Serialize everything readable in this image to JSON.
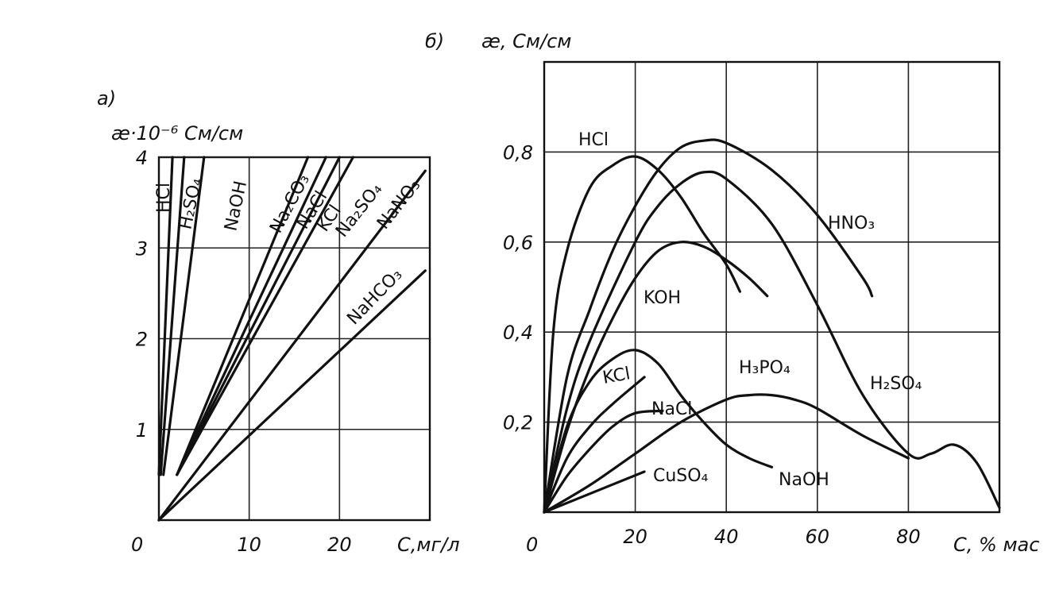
{
  "chart_data": [
    {
      "type": "line",
      "panel_label": "а)",
      "ylabel": "æ·10⁻⁶ См/см",
      "xlabel": "С,мг/л",
      "origin_label": "0",
      "xlim": [
        0,
        30
      ],
      "ylim": [
        0,
        4
      ],
      "x_ticks": [
        10,
        20
      ],
      "y_ticks": [
        1,
        2,
        3,
        4
      ],
      "grid": true,
      "series": [
        {
          "name": "HCl",
          "x": [
            0,
            1.5
          ],
          "y": [
            0.5,
            4.0
          ]
        },
        {
          "name": "H₂SO₄",
          "x": [
            0.2,
            2.8
          ],
          "y": [
            0.5,
            4.0
          ]
        },
        {
          "name": "NaOH",
          "x": [
            0.5,
            5.0
          ],
          "y": [
            0.5,
            4.0
          ]
        },
        {
          "name": "Na₂CO₃",
          "x": [
            2.0,
            16.5
          ],
          "y": [
            0.5,
            4.0
          ]
        },
        {
          "name": "NaCl",
          "x": [
            2.0,
            18.5
          ],
          "y": [
            0.5,
            4.0
          ]
        },
        {
          "name": "KCl",
          "x": [
            2.0,
            20.0
          ],
          "y": [
            0.5,
            4.0
          ]
        },
        {
          "name": "Na₂SO₄",
          "x": [
            2.0,
            21.5
          ],
          "y": [
            0.5,
            4.0
          ]
        },
        {
          "name": "NaNO₃",
          "x": [
            0,
            29.5
          ],
          "y": [
            0,
            3.85
          ]
        },
        {
          "name": "NaHCO₃",
          "x": [
            0,
            29.5
          ],
          "y": [
            0,
            2.75
          ]
        }
      ]
    },
    {
      "type": "line",
      "panel_label": "б)",
      "ylabel": "æ, См/см",
      "xlabel": "С, % мас",
      "origin_label": "0",
      "xlim": [
        0,
        100
      ],
      "ylim": [
        0,
        1.0
      ],
      "x_ticks": [
        20,
        40,
        60,
        80
      ],
      "y_ticks": [
        0.2,
        0.4,
        0.6,
        0.8
      ],
      "y_tick_labels": [
        "0,2",
        "0,4",
        "0,6",
        "0,8"
      ],
      "grid": true,
      "series": [
        {
          "name": "HCl",
          "x": [
            0,
            2,
            5,
            10,
            15,
            20,
            25,
            30,
            35,
            40,
            43
          ],
          "y": [
            0,
            0.4,
            0.58,
            0.72,
            0.77,
            0.79,
            0.76,
            0.7,
            0.62,
            0.55,
            0.49
          ]
        },
        {
          "name": "HNO₃",
          "x": [
            0,
            5,
            10,
            15,
            20,
            25,
            30,
            35,
            40,
            50,
            60,
            70,
            72
          ],
          "y": [
            0,
            0.3,
            0.45,
            0.58,
            0.68,
            0.76,
            0.81,
            0.825,
            0.82,
            0.76,
            0.66,
            0.52,
            0.48
          ]
        },
        {
          "name": "H₂SO₄",
          "x": [
            0,
            5,
            10,
            20,
            25,
            30,
            35,
            40,
            50,
            60,
            70,
            80,
            85,
            90,
            95,
            100
          ],
          "y": [
            0,
            0.23,
            0.38,
            0.6,
            0.68,
            0.73,
            0.755,
            0.74,
            0.64,
            0.46,
            0.26,
            0.13,
            0.13,
            0.15,
            0.11,
            0.01
          ]
        },
        {
          "name": "KOH",
          "x": [
            0,
            5,
            10,
            15,
            20,
            25,
            30,
            35,
            40,
            45,
            49
          ],
          "y": [
            0,
            0.18,
            0.32,
            0.43,
            0.52,
            0.58,
            0.6,
            0.59,
            0.56,
            0.52,
            0.48
          ]
        },
        {
          "name": "NaOH",
          "x": [
            0,
            5,
            10,
            15,
            20,
            25,
            30,
            35,
            40,
            45,
            50
          ],
          "y": [
            0,
            0.19,
            0.29,
            0.34,
            0.36,
            0.33,
            0.26,
            0.2,
            0.15,
            0.12,
            0.1
          ]
        },
        {
          "name": "KCl",
          "x": [
            0,
            5,
            10,
            15,
            22
          ],
          "y": [
            0,
            0.12,
            0.19,
            0.24,
            0.3
          ]
        },
        {
          "name": "NaCl",
          "x": [
            0,
            5,
            10,
            15,
            20,
            26
          ],
          "y": [
            0,
            0.08,
            0.14,
            0.19,
            0.22,
            0.225
          ]
        },
        {
          "name": "H₃PO₄",
          "x": [
            0,
            10,
            20,
            30,
            40,
            45,
            50,
            55,
            60,
            70,
            80
          ],
          "y": [
            0,
            0.06,
            0.13,
            0.2,
            0.25,
            0.26,
            0.26,
            0.25,
            0.23,
            0.17,
            0.12
          ]
        },
        {
          "name": "CuSO₄",
          "x": [
            0,
            22
          ],
          "y": [
            0,
            0.09
          ]
        }
      ]
    }
  ]
}
